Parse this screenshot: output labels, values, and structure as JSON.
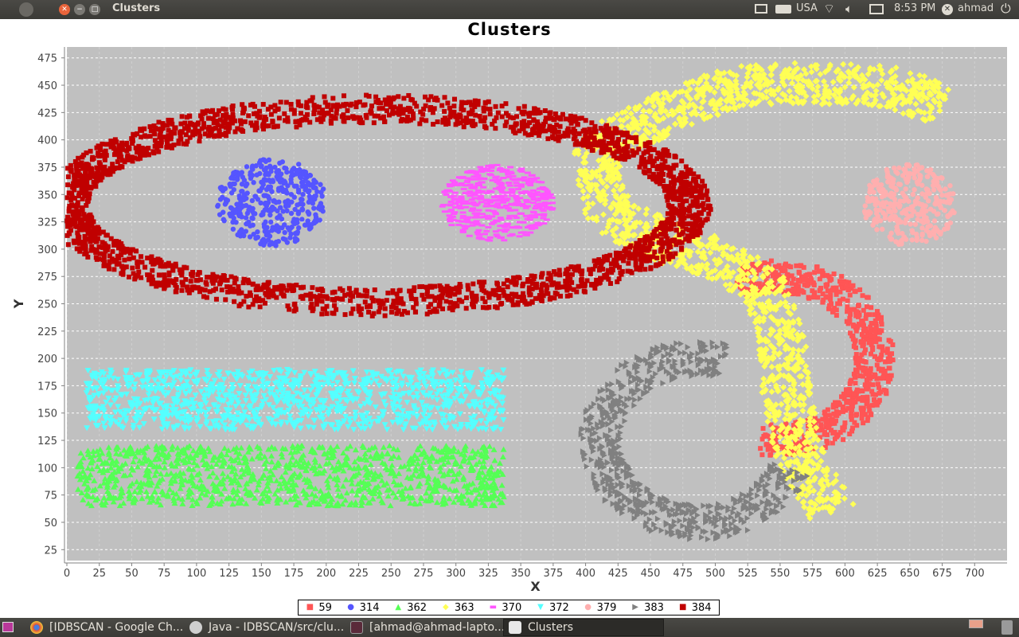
{
  "window": {
    "title": "Clusters"
  },
  "tray": {
    "keyboard": "USA",
    "time": "8:53 PM",
    "user": "ahmad"
  },
  "taskbar": {
    "items": [
      {
        "label": "[IDBSCAN - Google Ch...",
        "icon": "chrome-icon"
      },
      {
        "label": "Java - IDBSCAN/src/clu...",
        "icon": "eclipse-icon"
      },
      {
        "label": "[ahmad@ahmad-lapto...",
        "icon": "terminal-icon"
      },
      {
        "label": "Clusters",
        "icon": "java-icon"
      }
    ]
  },
  "chart_data": {
    "type": "scatter",
    "title": "Clusters",
    "xlabel": "X",
    "ylabel": "Y",
    "xlim": [
      0,
      725
    ],
    "ylim": [
      15,
      485
    ],
    "xticks": [
      0,
      25,
      50,
      75,
      100,
      125,
      150,
      175,
      200,
      225,
      250,
      275,
      300,
      325,
      350,
      375,
      400,
      425,
      450,
      475,
      500,
      525,
      550,
      575,
      600,
      625,
      650,
      675,
      700
    ],
    "yticks": [
      25,
      50,
      75,
      100,
      125,
      150,
      175,
      200,
      225,
      250,
      275,
      300,
      325,
      350,
      375,
      400,
      425,
      450,
      475
    ],
    "grid": true,
    "background": "#c0c0c0",
    "legend_position": "bottom",
    "series": [
      {
        "name": "59",
        "color": "#ff5555",
        "marker": "square",
        "shape": "arc",
        "cx": 548,
        "cy": 200,
        "r": 75,
        "thickness": 30,
        "from_deg": 115,
        "to_deg": -100,
        "count": 700
      },
      {
        "name": "314",
        "color": "#5555ff",
        "marker": "circle",
        "shape": "blob",
        "cx": 158,
        "cy": 343,
        "rx": 42,
        "ry": 40,
        "count": 380
      },
      {
        "name": "362",
        "color": "#55ff55",
        "marker": "triangle-up",
        "shape": "rect",
        "x": [
          8,
          337
        ],
        "y": [
          65,
          120
        ],
        "count": 1100
      },
      {
        "name": "363",
        "color": "#ffff55",
        "marker": "diamond",
        "shape": "polyline",
        "thickness": 38,
        "count": 1700,
        "path": [
          [
            675,
            430
          ],
          [
            640,
            448
          ],
          [
            575,
            452
          ],
          [
            520,
            450
          ],
          [
            470,
            430
          ],
          [
            420,
            400
          ],
          [
            405,
            375
          ],
          [
            420,
            330
          ],
          [
            465,
            305
          ],
          [
            505,
            290
          ],
          [
            535,
            268
          ],
          [
            545,
            240
          ],
          [
            552,
            210
          ],
          [
            555,
            165
          ],
          [
            565,
            110
          ],
          [
            580,
            80
          ],
          [
            590,
            58
          ]
        ]
      },
      {
        "name": "370",
        "color": "#ff55ff",
        "marker": "dash",
        "shape": "blob",
        "cx": 332,
        "cy": 342,
        "rx": 43,
        "ry": 35,
        "count": 450
      },
      {
        "name": "372",
        "color": "#55ffff",
        "marker": "triangle-down",
        "shape": "rect",
        "x": [
          15,
          337
        ],
        "y": [
          135,
          190
        ],
        "count": 1100
      },
      {
        "name": "379",
        "color": "#ffafaf",
        "marker": "circle",
        "shape": "blob",
        "cx": 650,
        "cy": 340,
        "rx": 36,
        "ry": 38,
        "count": 300
      },
      {
        "name": "383",
        "color": "#808080",
        "marker": "triangle-right",
        "shape": "arc",
        "cx": 487,
        "cy": 125,
        "r": 75,
        "thickness": 32,
        "from_deg": 75,
        "to_deg": 340,
        "count": 700
      },
      {
        "name": "384",
        "color": "#c00000",
        "marker": "square",
        "shape": "ring",
        "cx": 240,
        "cy": 340,
        "rx": 240,
        "ry": 88,
        "thickness": 48,
        "count": 2400
      }
    ]
  }
}
